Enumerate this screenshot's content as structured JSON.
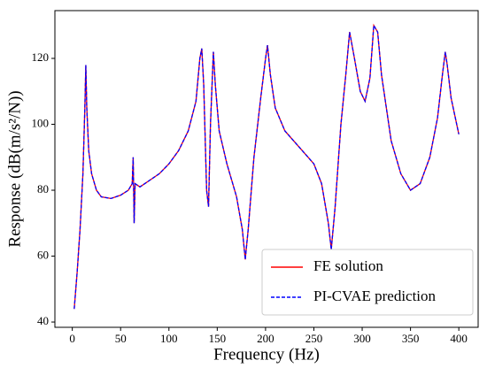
{
  "chart_data": {
    "type": "line",
    "xlabel": "Frequency (Hz)",
    "ylabel": "Response (dB(m/s²/N))",
    "x": [
      2,
      5,
      8,
      11,
      13,
      14,
      15,
      17,
      20,
      25,
      30,
      40,
      50,
      58,
      62,
      63,
      64,
      65,
      70,
      80,
      90,
      100,
      110,
      120,
      128,
      132,
      134,
      136,
      139,
      141,
      143,
      146,
      148,
      152,
      160,
      170,
      176,
      179,
      182,
      188,
      195,
      200,
      202,
      205,
      210,
      220,
      235,
      250,
      258,
      265,
      268,
      272,
      278,
      283,
      287,
      292,
      298,
      303,
      308,
      312,
      316,
      320,
      330,
      340,
      350,
      360,
      370,
      378,
      383,
      386,
      388,
      392,
      400
    ],
    "series": [
      {
        "name": "FE solution",
        "color": "#ff0000",
        "line_style": "solid",
        "values": [
          44,
          55,
          68,
          85,
          105,
          118,
          105,
          92,
          85,
          80,
          78,
          77.5,
          78.5,
          80,
          82,
          90,
          70,
          82,
          81,
          83,
          85,
          88,
          92,
          98,
          107,
          120,
          123,
          112,
          80,
          75,
          100,
          122,
          112,
          98,
          88,
          78,
          68,
          59,
          68,
          90,
          108,
          120,
          124,
          115,
          105,
          98,
          93,
          88,
          82,
          70,
          62,
          75,
          100,
          115,
          128,
          120,
          110,
          107,
          114,
          130,
          128,
          115,
          95,
          85,
          80,
          82,
          90,
          102,
          115,
          122,
          118,
          108,
          97
        ]
      },
      {
        "name": "PI-CVAE prediction",
        "color": "#0000ff",
        "line_style": "dashed",
        "values": [
          44,
          55,
          68,
          85,
          105,
          118,
          105,
          92,
          85,
          80,
          78,
          77.5,
          78.5,
          80,
          82,
          90,
          70,
          82,
          81,
          83,
          85,
          88,
          92,
          98,
          107,
          120,
          123,
          112,
          80,
          75,
          100,
          122,
          112,
          98,
          88,
          78,
          68,
          59,
          68,
          90,
          108,
          120,
          124,
          115,
          105,
          98,
          93,
          88,
          82,
          70,
          62,
          75,
          100,
          115,
          128,
          120,
          110,
          107,
          114,
          130,
          128,
          115,
          95,
          85,
          80,
          82,
          90,
          102,
          115,
          122,
          118,
          108,
          97
        ]
      }
    ],
    "xlim": [
      -18,
      420
    ],
    "xticks": [
      0,
      50,
      100,
      150,
      200,
      250,
      300,
      350,
      400
    ],
    "ylim": [
      38.4,
      134.5
    ],
    "yticks": [
      40,
      60,
      80,
      100,
      120
    ],
    "grid": false,
    "legend": "lower right"
  }
}
